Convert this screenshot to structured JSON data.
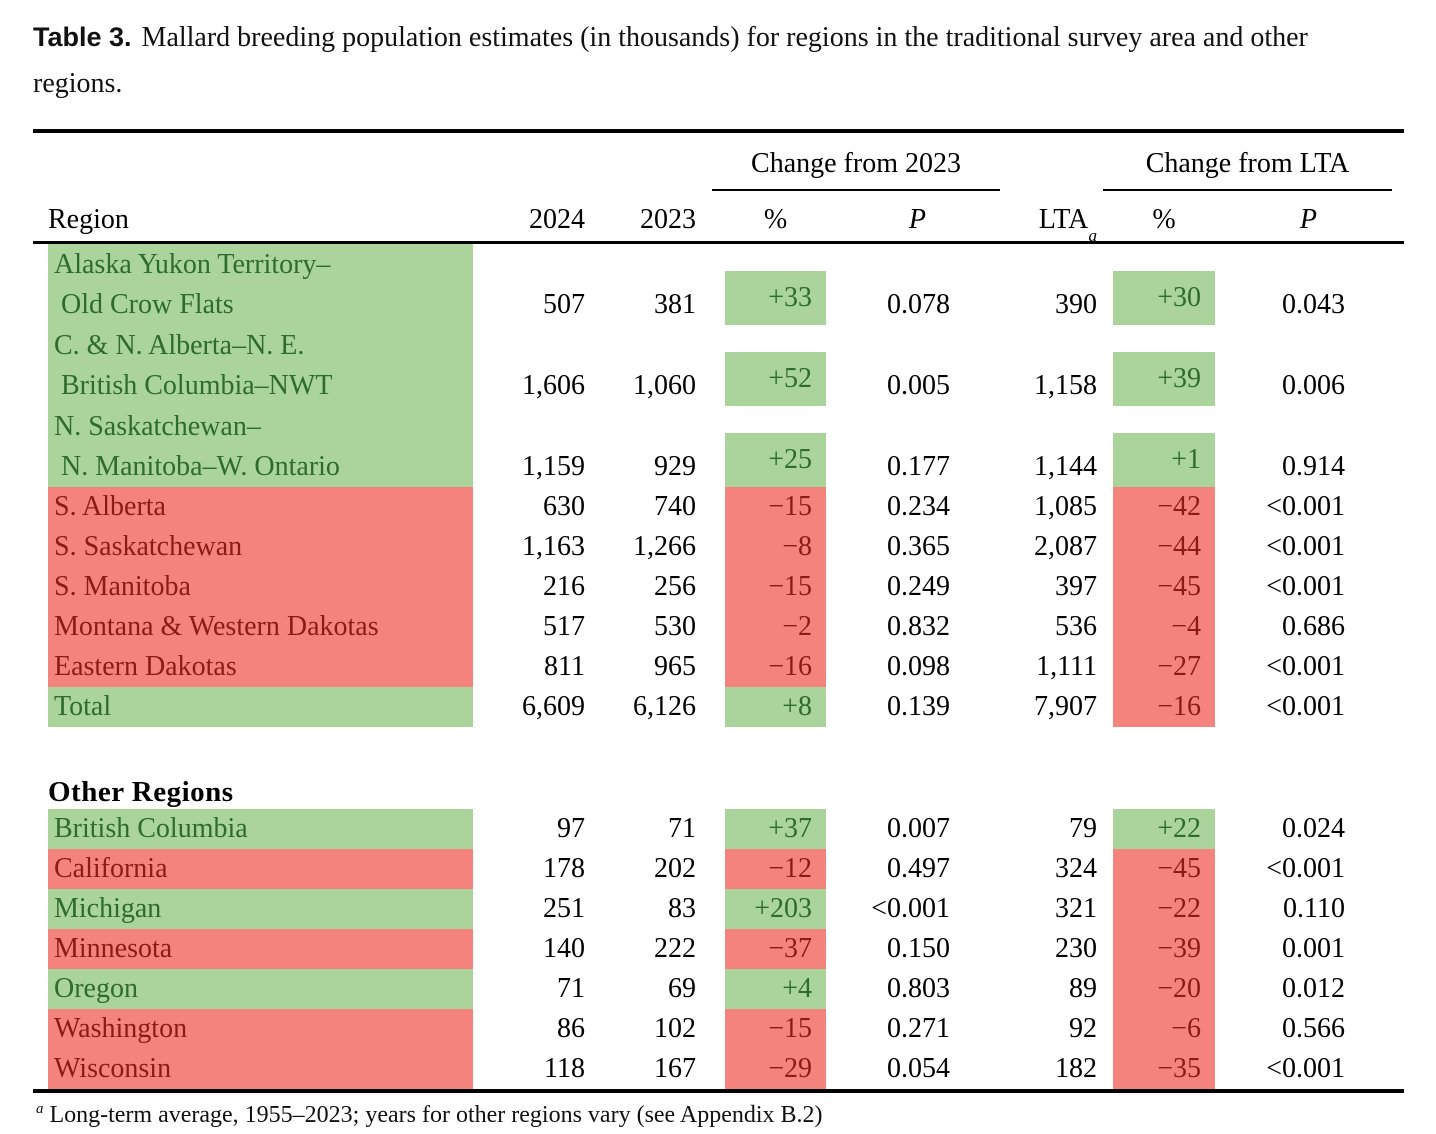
{
  "title": {
    "label": "Table 3.",
    "text": "Mallard breeding population estimates (in thousands) for regions in the traditional survey area and other regions."
  },
  "header": {
    "region": "Region",
    "col_2024": "2024",
    "col_2023": "2023",
    "change_2023": "Change from 2023",
    "change_lta": "Change from LTA",
    "pct_2023": "%",
    "p_2023": "P",
    "lta_label": "LTA",
    "lta_sup": "a",
    "pct_lta": "%",
    "p_lta": "P"
  },
  "colors": {
    "green_bg": "#aad49c",
    "red_bg": "#f5837d",
    "green_text": "#2e6b2e",
    "red_text": "#8c1b16"
  },
  "sections": {
    "traditional": {
      "rows": [
        {
          "name_lines": [
            "Alaska Yukon Territory–",
            "Old Crow Flats"
          ],
          "tone": "green",
          "v2024": "507",
          "v2023": "381",
          "pct_2023": "+33",
          "pct_2023_tone": "green",
          "p_2023": "0.078",
          "lta": "390",
          "pct_lta": "+30",
          "pct_lta_tone": "green",
          "p_lta": "0.043"
        },
        {
          "name_lines": [
            "C. & N. Alberta–N. E.",
            "British Columbia–NWT"
          ],
          "tone": "green",
          "v2024": "1,606",
          "v2023": "1,060",
          "pct_2023": "+52",
          "pct_2023_tone": "green",
          "p_2023": "0.005",
          "lta": "1,158",
          "pct_lta": "+39",
          "pct_lta_tone": "green",
          "p_lta": "0.006"
        },
        {
          "name_lines": [
            "N. Saskatchewan–",
            "N. Manitoba–W. Ontario"
          ],
          "tone": "green",
          "v2024": "1,159",
          "v2023": "929",
          "pct_2023": "+25",
          "pct_2023_tone": "green",
          "p_2023": "0.177",
          "lta": "1,144",
          "pct_lta": "+1",
          "pct_lta_tone": "green",
          "p_lta": "0.914"
        },
        {
          "name_lines": [
            "S. Alberta"
          ],
          "tone": "red",
          "v2024": "630",
          "v2023": "740",
          "pct_2023": "−15",
          "pct_2023_tone": "red",
          "p_2023": "0.234",
          "lta": "1,085",
          "pct_lta": "−42",
          "pct_lta_tone": "red",
          "p_lta": "<0.001"
        },
        {
          "name_lines": [
            "S. Saskatchewan"
          ],
          "tone": "red",
          "v2024": "1,163",
          "v2023": "1,266",
          "pct_2023": "−8",
          "pct_2023_tone": "red",
          "p_2023": "0.365",
          "lta": "2,087",
          "pct_lta": "−44",
          "pct_lta_tone": "red",
          "p_lta": "<0.001"
        },
        {
          "name_lines": [
            "S. Manitoba"
          ],
          "tone": "red",
          "v2024": "216",
          "v2023": "256",
          "pct_2023": "−15",
          "pct_2023_tone": "red",
          "p_2023": "0.249",
          "lta": "397",
          "pct_lta": "−45",
          "pct_lta_tone": "red",
          "p_lta": "<0.001"
        },
        {
          "name_lines": [
            "Montana & Western Dakotas"
          ],
          "tone": "red",
          "v2024": "517",
          "v2023": "530",
          "pct_2023": "−2",
          "pct_2023_tone": "red",
          "p_2023": "0.832",
          "lta": "536",
          "pct_lta": "−4",
          "pct_lta_tone": "red",
          "p_lta": "0.686"
        },
        {
          "name_lines": [
            "Eastern Dakotas"
          ],
          "tone": "red",
          "v2024": "811",
          "v2023": "965",
          "pct_2023": "−16",
          "pct_2023_tone": "red",
          "p_2023": "0.098",
          "lta": "1,111",
          "pct_lta": "−27",
          "pct_lta_tone": "red",
          "p_lta": "<0.001"
        },
        {
          "name_lines": [
            "Total"
          ],
          "tone": "green",
          "v2024": "6,609",
          "v2023": "6,126",
          "pct_2023": "+8",
          "pct_2023_tone": "green",
          "p_2023": "0.139",
          "lta": "7,907",
          "pct_lta": "−16",
          "pct_lta_tone": "red",
          "p_lta": "<0.001"
        }
      ]
    },
    "other": {
      "label": "Other Regions",
      "rows": [
        {
          "name_lines": [
            "British Columbia"
          ],
          "tone": "green",
          "v2024": "97",
          "v2023": "71",
          "pct_2023": "+37",
          "pct_2023_tone": "green",
          "p_2023": "0.007",
          "lta": "79",
          "pct_lta": "+22",
          "pct_lta_tone": "green",
          "p_lta": "0.024"
        },
        {
          "name_lines": [
            "California"
          ],
          "tone": "red",
          "v2024": "178",
          "v2023": "202",
          "pct_2023": "−12",
          "pct_2023_tone": "red",
          "p_2023": "0.497",
          "lta": "324",
          "pct_lta": "−45",
          "pct_lta_tone": "red",
          "p_lta": "<0.001"
        },
        {
          "name_lines": [
            "Michigan"
          ],
          "tone": "green",
          "v2024": "251",
          "v2023": "83",
          "pct_2023": "+203",
          "pct_2023_tone": "green",
          "p_2023": "<0.001",
          "lta": "321",
          "pct_lta": "−22",
          "pct_lta_tone": "red",
          "p_lta": "0.110"
        },
        {
          "name_lines": [
            "Minnesota"
          ],
          "tone": "red",
          "v2024": "140",
          "v2023": "222",
          "pct_2023": "−37",
          "pct_2023_tone": "red",
          "p_2023": "0.150",
          "lta": "230",
          "pct_lta": "−39",
          "pct_lta_tone": "red",
          "p_lta": "0.001"
        },
        {
          "name_lines": [
            "Oregon"
          ],
          "tone": "green",
          "v2024": "71",
          "v2023": "69",
          "pct_2023": "+4",
          "pct_2023_tone": "green",
          "p_2023": "0.803",
          "lta": "89",
          "pct_lta": "−20",
          "pct_lta_tone": "red",
          "p_lta": "0.012"
        },
        {
          "name_lines": [
            "Washington"
          ],
          "tone": "red",
          "v2024": "86",
          "v2023": "102",
          "pct_2023": "−15",
          "pct_2023_tone": "red",
          "p_2023": "0.271",
          "lta": "92",
          "pct_lta": "−6",
          "pct_lta_tone": "red",
          "p_lta": "0.566"
        },
        {
          "name_lines": [
            "Wisconsin"
          ],
          "tone": "red",
          "v2024": "118",
          "v2023": "167",
          "pct_2023": "−29",
          "pct_2023_tone": "red",
          "p_2023": "0.054",
          "lta": "182",
          "pct_lta": "−35",
          "pct_lta_tone": "red",
          "p_lta": "<0.001"
        }
      ]
    }
  },
  "footnote": {
    "sup": "a",
    "text": "Long-term average, 1955–2023; years for other regions vary (see Appendix B.2)"
  }
}
